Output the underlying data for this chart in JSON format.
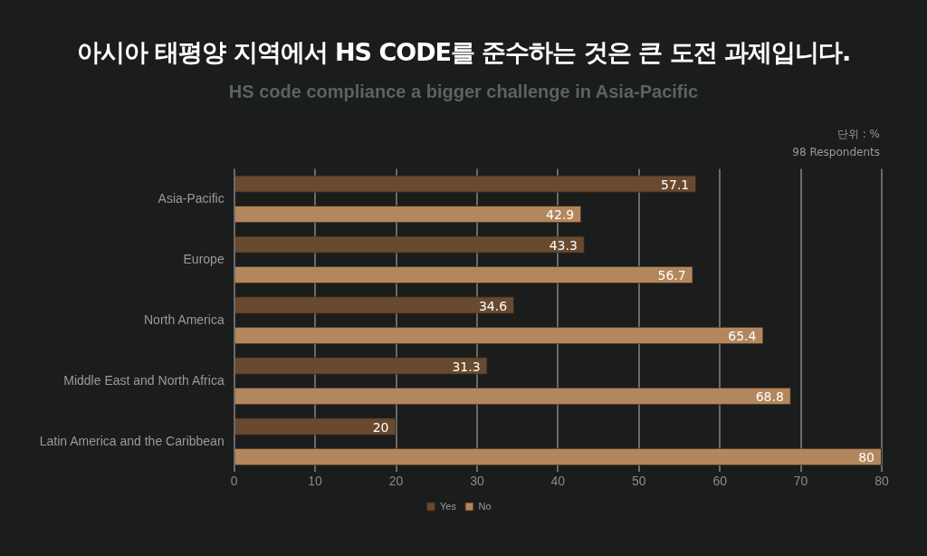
{
  "chart_data": {
    "type": "bar",
    "orientation": "horizontal",
    "title": "아시아 태평양 지역에서 HS CODE를 준수하는 것은 큰 도전 과제입니다.",
    "subtitle": "HS code compliance a bigger challenge in Asia-Pacific",
    "annotations": [
      "단위 : %",
      "98 Respondents"
    ],
    "categories": [
      "Asia-Pacific",
      "Europe",
      "North America",
      "Middle East and North Africa",
      "Latin America and the Caribbean"
    ],
    "series": [
      {
        "name": "Yes",
        "color": "#694a2f",
        "values": [
          57.1,
          43.3,
          34.6,
          31.3,
          20
        ]
      },
      {
        "name": "No",
        "color": "#b3875d",
        "values": [
          42.9,
          56.7,
          65.4,
          68.8,
          80
        ]
      }
    ],
    "xlim": [
      0,
      80
    ],
    "xticks": [
      0,
      10,
      20,
      30,
      40,
      50,
      60,
      70,
      80
    ],
    "grid": "x",
    "legend": "bottom",
    "data_labels": true
  }
}
